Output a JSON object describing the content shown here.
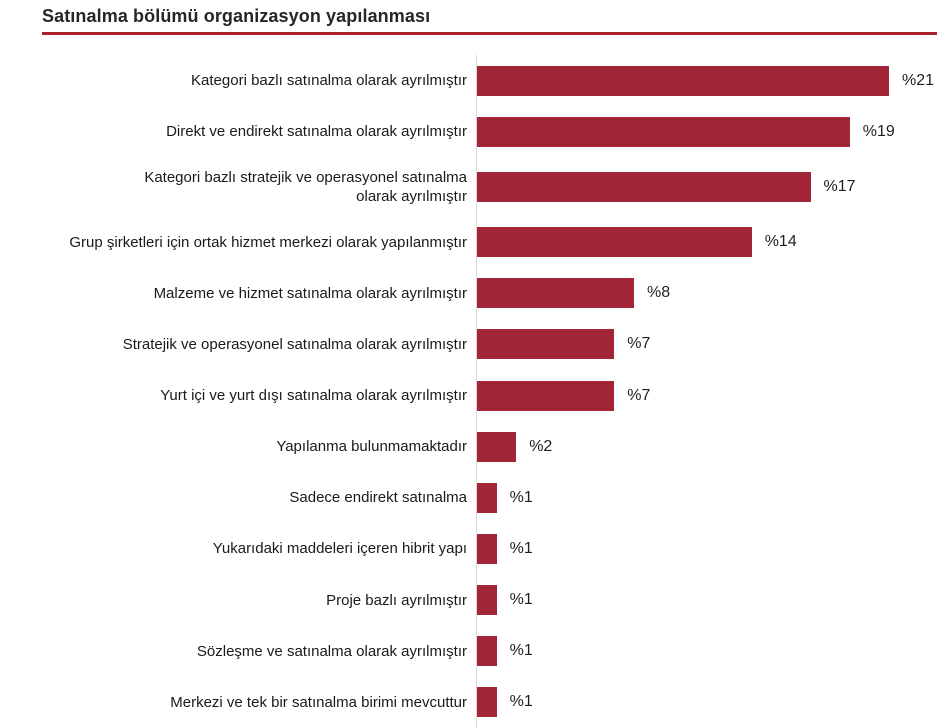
{
  "header": {
    "title": "Satınalma bölümü organizasyon yapılanması"
  },
  "colors": {
    "bar": "#a32638",
    "title_rule": "#b01e2e",
    "axis_line": "#d9d9d9",
    "text": "#1a1a1a"
  },
  "chart_data": {
    "type": "bar",
    "orientation": "horizontal",
    "title": "Satınalma bölümü organizasyon yapılanması",
    "xlabel": "",
    "ylabel": "",
    "unit": "%",
    "xlim": [
      0,
      21.5
    ],
    "grid": false,
    "legend": false,
    "categories": [
      "Kategori bazlı satınalma olarak ayrılmıştır",
      "Direkt ve endirekt satınalma olarak ayrılmıştır",
      "Kategori bazlı stratejik ve operasyonel satınalma\nolarak ayrılmıştır",
      "Grup şirketleri için ortak hizmet merkezi olarak yapılanmıştır",
      "Malzeme ve hizmet satınalma olarak ayrılmıştır",
      "Stratejik ve operasyonel satınalma olarak ayrılmıştır",
      "Yurt içi ve yurt dışı satınalma olarak ayrılmıştır",
      "Yapılanma bulunmamaktadır",
      "Sadece endirekt satınalma",
      "Yukarıdaki maddeleri içeren hibrit yapı",
      "Proje bazlı ayrılmıştır",
      "Sözleşme ve satınalma olarak ayrılmıştır",
      "Merkezi ve tek bir satınalma birimi mevcuttur"
    ],
    "values": [
      21,
      19,
      17,
      14,
      8,
      7,
      7,
      2,
      1,
      1,
      1,
      1,
      1
    ],
    "value_labels": [
      "%21",
      "%19",
      "%17",
      "%14",
      "%8",
      "%7",
      "%7",
      "%2",
      "%1",
      "%1",
      "%1",
      "%1",
      "%1"
    ]
  }
}
